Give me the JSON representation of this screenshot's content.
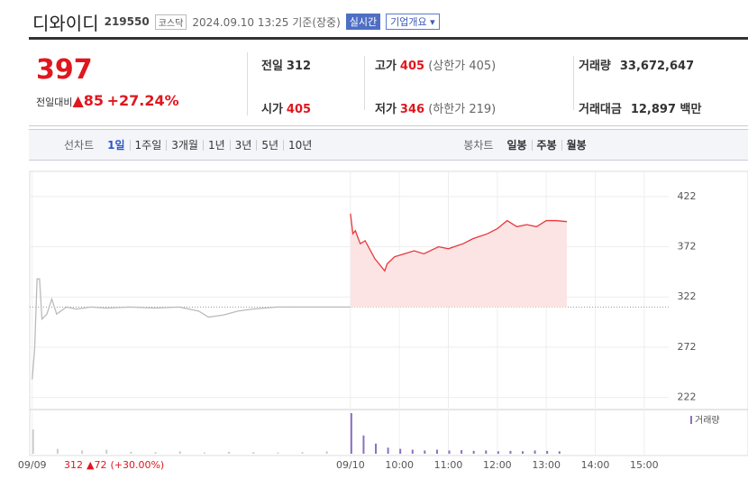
{
  "header": {
    "name": "디와이디",
    "code": "219550",
    "market": "코스닥",
    "datetime": "2024.09.10 13:25 기준(장중)",
    "btn_realtime": "실시간",
    "btn_company": "기업개요"
  },
  "quote": {
    "price": "397",
    "change_label": "전일대비",
    "change_arrow": "▲",
    "change": "85",
    "change_rate": "+27.24%",
    "items": [
      {
        "label": "전일",
        "value": "312"
      },
      {
        "label": "고가",
        "value": "405",
        "sub_label": "상한가",
        "sub_value": "405"
      },
      {
        "label": "거래량",
        "value": "33,672,647"
      },
      {
        "label": "시가",
        "value": "405"
      },
      {
        "label": "저가",
        "value": "346",
        "sub_label": "하한가",
        "sub_value": "219"
      },
      {
        "label": "거래대금",
        "value": "12,897 백만"
      }
    ]
  },
  "tabs": {
    "line_label": "선차트",
    "line": [
      "1일",
      "1주일",
      "3개월",
      "1년",
      "3년",
      "5년",
      "10년"
    ],
    "candle_label": "봉차트",
    "candle": [
      "일봉",
      "주봉",
      "월봉"
    ]
  },
  "chart_data": [
    {
      "type": "line",
      "xlim": [
        2.45,
        15.5
      ],
      "ylim": [
        210,
        447
      ],
      "yticks": [
        222,
        272,
        322,
        372,
        422
      ],
      "reference": 312,
      "xticks": [
        {
          "value": 2.5,
          "label": "09/09"
        },
        {
          "value": 9,
          "label": "09/10"
        },
        {
          "value": 10,
          "label": "10:00"
        },
        {
          "value": 11,
          "label": "11:00"
        },
        {
          "value": 12,
          "label": "12:00"
        },
        {
          "value": 13,
          "label": "13:00"
        },
        {
          "value": 14,
          "label": "14:00"
        },
        {
          "value": 15,
          "label": "15:00"
        }
      ],
      "prev_summary": {
        "close": "312",
        "arrow": "▲",
        "change": "72",
        "rate": "(+30.00%)"
      },
      "series": [
        {
          "color": "#bbbbbb",
          "x": [
            2.5,
            2.55,
            2.6,
            2.65,
            2.7,
            2.8,
            2.9,
            3.0,
            3.2,
            3.4,
            3.7,
            4.0,
            4.5,
            5.0,
            5.5,
            5.9,
            6.1,
            6.4,
            6.7,
            7.0,
            7.5,
            8.0,
            8.5,
            9.0
          ],
          "values": [
            240,
            270,
            340,
            340,
            300,
            305,
            320,
            305,
            312,
            310,
            312,
            311,
            312,
            311,
            312,
            308,
            302,
            304,
            308,
            310,
            312,
            312,
            312,
            312
          ]
        },
        {
          "color": "#e8373a",
          "area": "#fde4e4",
          "x": [
            9.0,
            9.05,
            9.1,
            9.2,
            9.3,
            9.5,
            9.7,
            9.75,
            9.9,
            10.1,
            10.3,
            10.5,
            10.8,
            11.0,
            11.3,
            11.5,
            11.8,
            12.0,
            12.2,
            12.4,
            12.6,
            12.8,
            13.0,
            13.2,
            13.42
          ],
          "values": [
            405,
            385,
            388,
            375,
            378,
            360,
            348,
            355,
            362,
            365,
            368,
            365,
            372,
            370,
            375,
            380,
            385,
            390,
            398,
            392,
            394,
            392,
            398,
            398,
            397
          ]
        }
      ]
    },
    {
      "type": "bar",
      "xlim": [
        2.45,
        15.5
      ],
      "ylim": [
        0,
        100
      ],
      "legend": "거래량",
      "series": [
        {
          "color": "#cccccc",
          "x": [
            2.5,
            3.0,
            3.5,
            4.0,
            4.5,
            5.0,
            5.5,
            6.0,
            6.5,
            7.0,
            7.5,
            8.0,
            8.5,
            9.0
          ],
          "values": [
            60,
            12,
            8,
            10,
            5,
            4,
            6,
            3,
            5,
            4,
            3,
            4,
            6,
            3
          ]
        },
        {
          "color": "#8a6fc4",
          "x": [
            9.0,
            9.25,
            9.5,
            9.75,
            10.0,
            10.25,
            10.5,
            10.75,
            11.0,
            11.25,
            11.5,
            11.75,
            12.0,
            12.25,
            12.5,
            12.75,
            13.0,
            13.25
          ],
          "values": [
            100,
            45,
            25,
            15,
            12,
            10,
            8,
            10,
            8,
            9,
            7,
            8,
            6,
            7,
            6,
            8,
            7,
            6
          ]
        }
      ]
    }
  ]
}
